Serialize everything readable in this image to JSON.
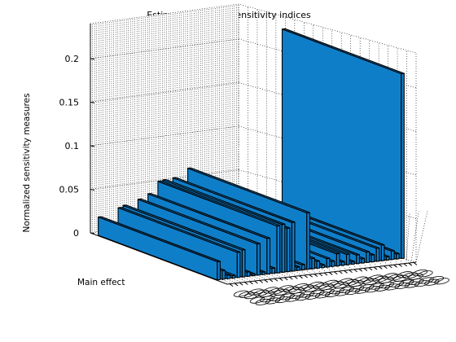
{
  "chart_data": {
    "type": "bar3",
    "title": "Estimations of the sensitivity indices",
    "ylabel": "Normalized sensitivity measures",
    "series_labels": [
      "Main effect"
    ],
    "zlim": [
      0,
      0.2
    ],
    "ticks": [
      {
        "value": 0,
        "label": "0"
      },
      {
        "value": 0.05,
        "label": "0.05"
      },
      {
        "value": 0.1,
        "label": "0.1"
      },
      {
        "value": 0.15,
        "label": "0.15"
      },
      {
        "value": 0.2,
        "label": "0.2"
      }
    ],
    "grid": true,
    "values": [
      0.021,
      0.01,
      0.004,
      0.003,
      0.029,
      0.031,
      0.005,
      0.002,
      0.036,
      0.003,
      0.041,
      0.006,
      0.054,
      0.055,
      0.05,
      0.056,
      0.004,
      0.006,
      0.065,
      0.012,
      0.008,
      0.003,
      0.01,
      0.006,
      0.014,
      0.004,
      0.012,
      0.003,
      0.01,
      0.005,
      0.012,
      0.008,
      0.015,
      0.018,
      0.004,
      0.01,
      0.006,
      0.212
    ],
    "colors": {
      "bar": "#0f7ec9",
      "edge": "#000000"
    }
  }
}
